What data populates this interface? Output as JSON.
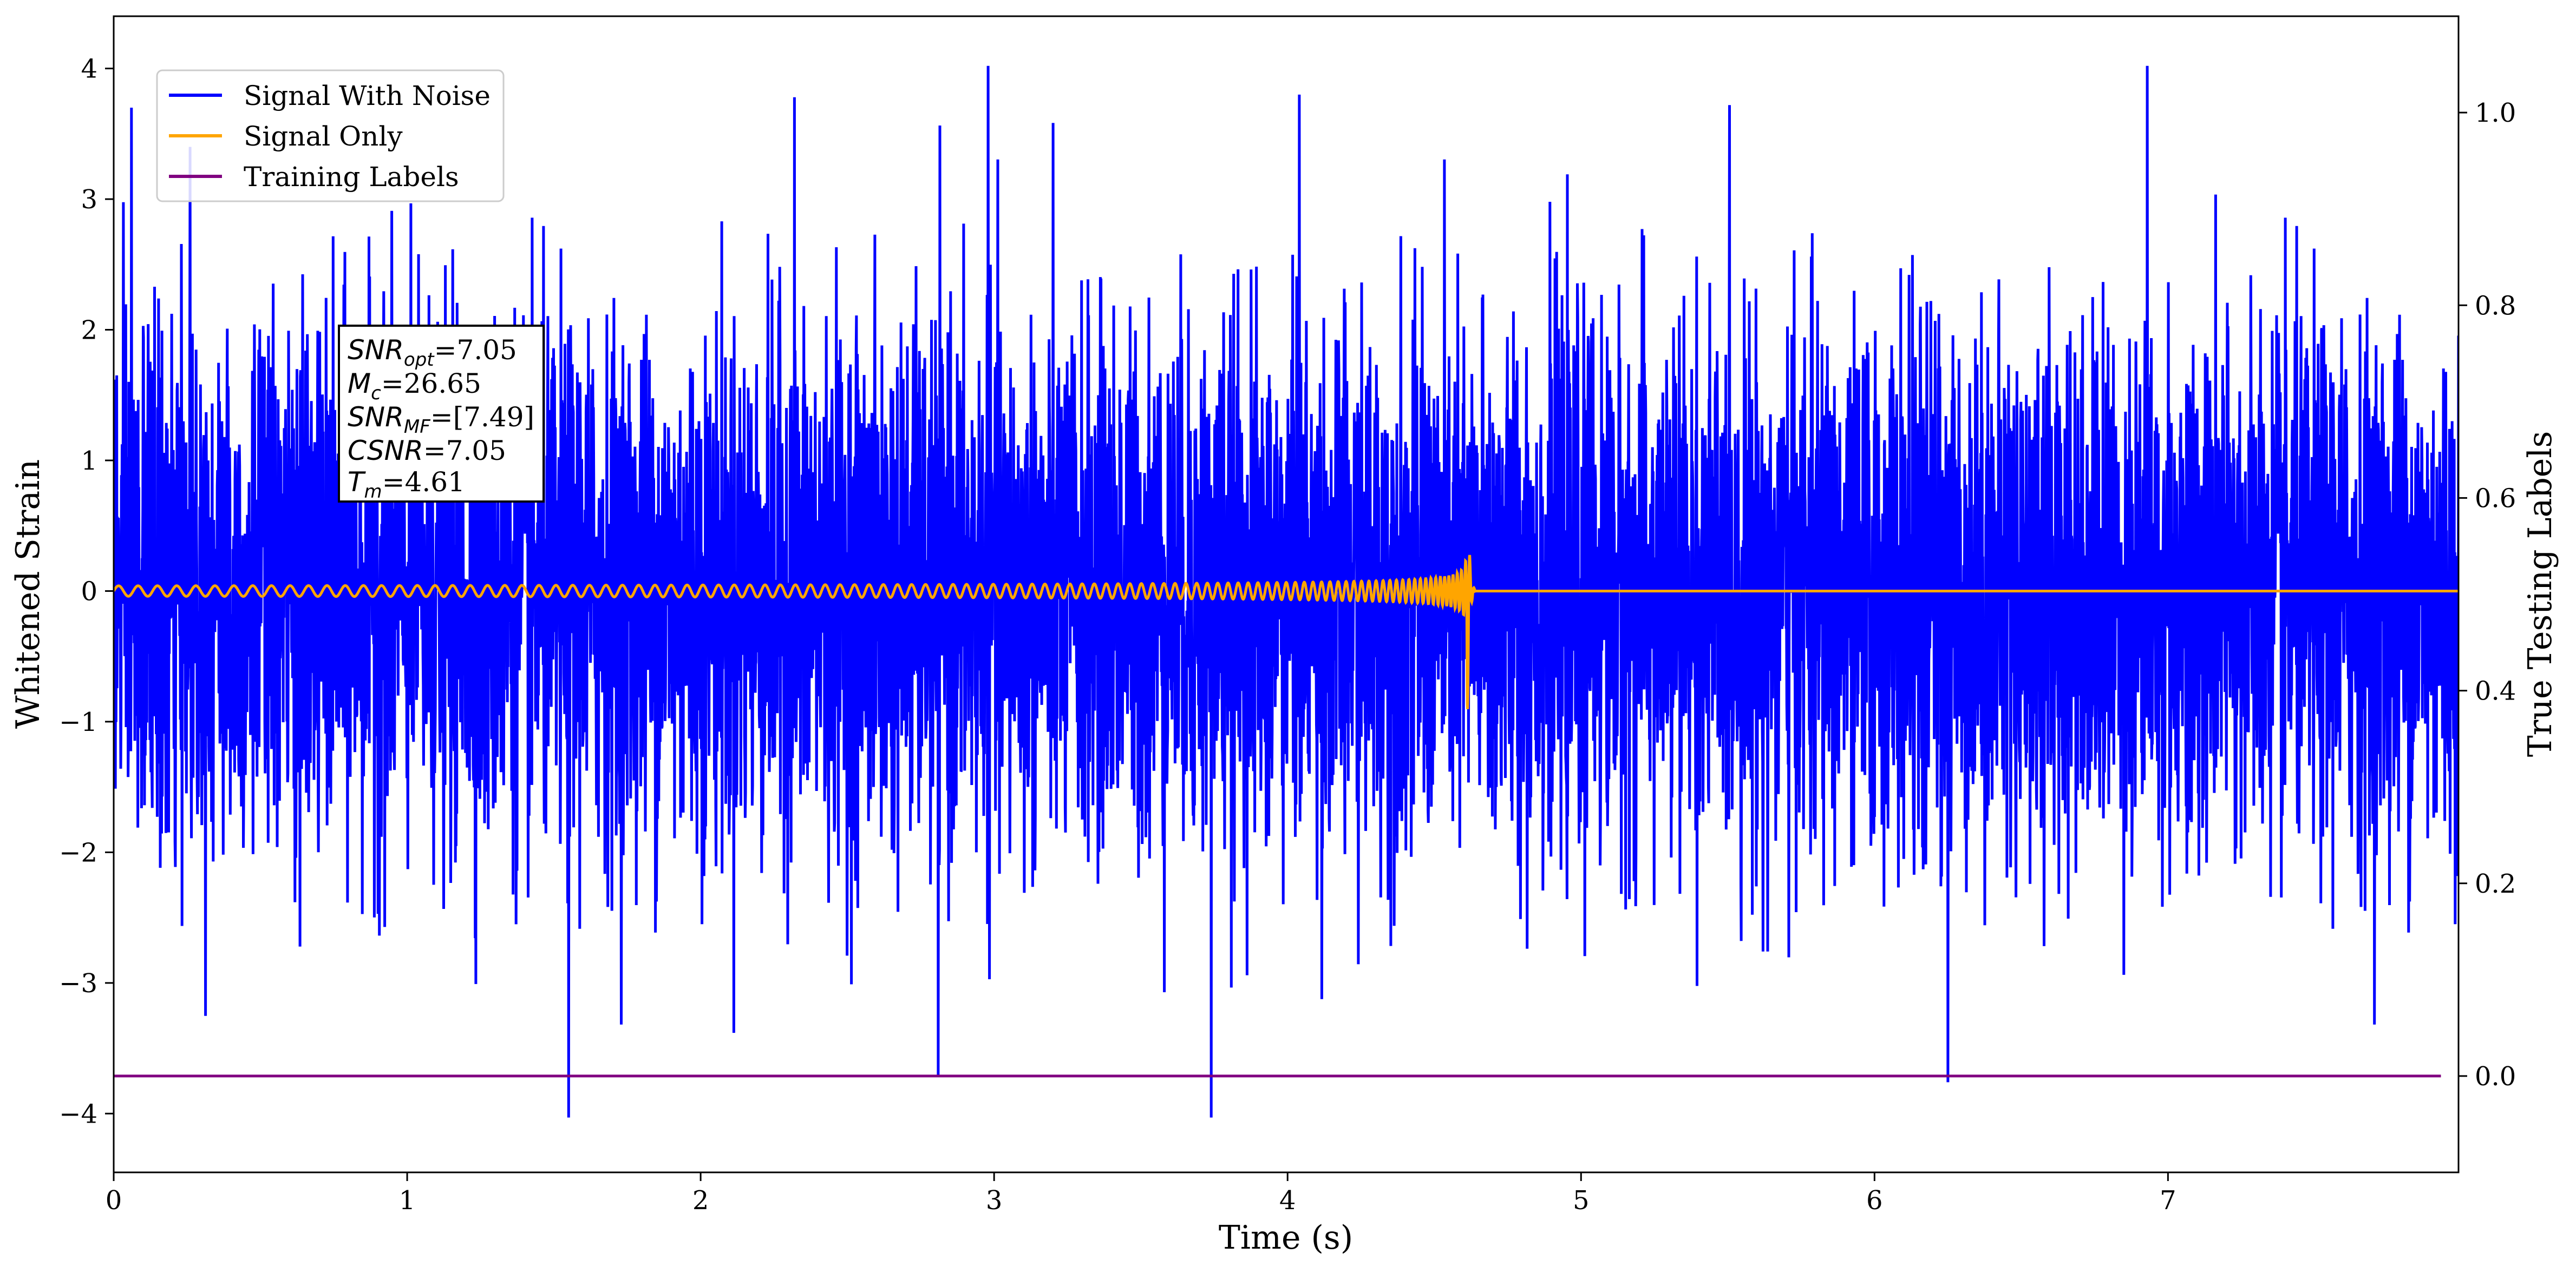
{
  "chart_data": {
    "type": "line",
    "title": "",
    "xlabel": "Time (s)",
    "ylabel": "Whitened Strain",
    "y2label": "True Testing Labels",
    "xlim": [
      0,
      7.99
    ],
    "ylim": [
      -4.45,
      4.4
    ],
    "y2lim": [
      -0.1,
      1.1
    ],
    "x_ticks": [
      "0",
      "1",
      "2",
      "3",
      "4",
      "5",
      "6",
      "7"
    ],
    "y_ticks": [
      "4",
      "3",
      "2",
      "1",
      "0",
      "−1",
      "−2",
      "−3",
      "−4"
    ],
    "y2_ticks": [
      "1.0",
      "0.8",
      "0.6",
      "0.4",
      "0.2",
      "0.0"
    ],
    "grid": false,
    "legend_position": "top-left",
    "series": [
      {
        "name": "Signal With Noise",
        "axis": "left",
        "color": "#0000ff",
        "description_stats": {
          "approx_std": 1.0,
          "min": -4.05,
          "max": 4.02
        },
        "notable_peaks": [
          {
            "x": 0.06,
            "y": 3.7
          },
          {
            "x": 0.26,
            "y": 3.4
          },
          {
            "x": 1.55,
            "y": -4.03
          },
          {
            "x": 2.32,
            "y": 3.78
          },
          {
            "x": 2.81,
            "y": -3.72
          },
          {
            "x": 2.98,
            "y": 4.02
          },
          {
            "x": 3.74,
            "y": -4.03
          },
          {
            "x": 4.04,
            "y": 3.8
          },
          {
            "x": 6.25,
            "y": -3.76
          },
          {
            "x": 6.93,
            "y": 4.02
          }
        ]
      },
      {
        "name": "Signal Only",
        "axis": "left",
        "color": "#ffa500",
        "chirp": {
          "start_x": 0.0,
          "merger_x": 4.61,
          "initial_amplitude": 0.04,
          "peak_amplitude": 1.65,
          "min_value": -1.5,
          "initial_frequency_hz": 15,
          "merger_frequency_hz": 70
        }
      },
      {
        "name": "Training Labels",
        "axis": "right",
        "color": "#800080",
        "x": [
          0,
          7.93
        ],
        "y": [
          0.0,
          0.0
        ]
      }
    ],
    "annotation": {
      "lines": [
        {
          "main": "SNR",
          "sub": "opt",
          "value": "=7.05"
        },
        {
          "main": "M",
          "sub": "c",
          "value": "=26.65"
        },
        {
          "main": "SNR",
          "sub": "MF",
          "value": "=[7.49]"
        },
        {
          "main": "CSNR",
          "sub": "",
          "value": "=7.05"
        },
        {
          "main": "T",
          "sub": "m",
          "value": "=4.61"
        }
      ]
    }
  }
}
